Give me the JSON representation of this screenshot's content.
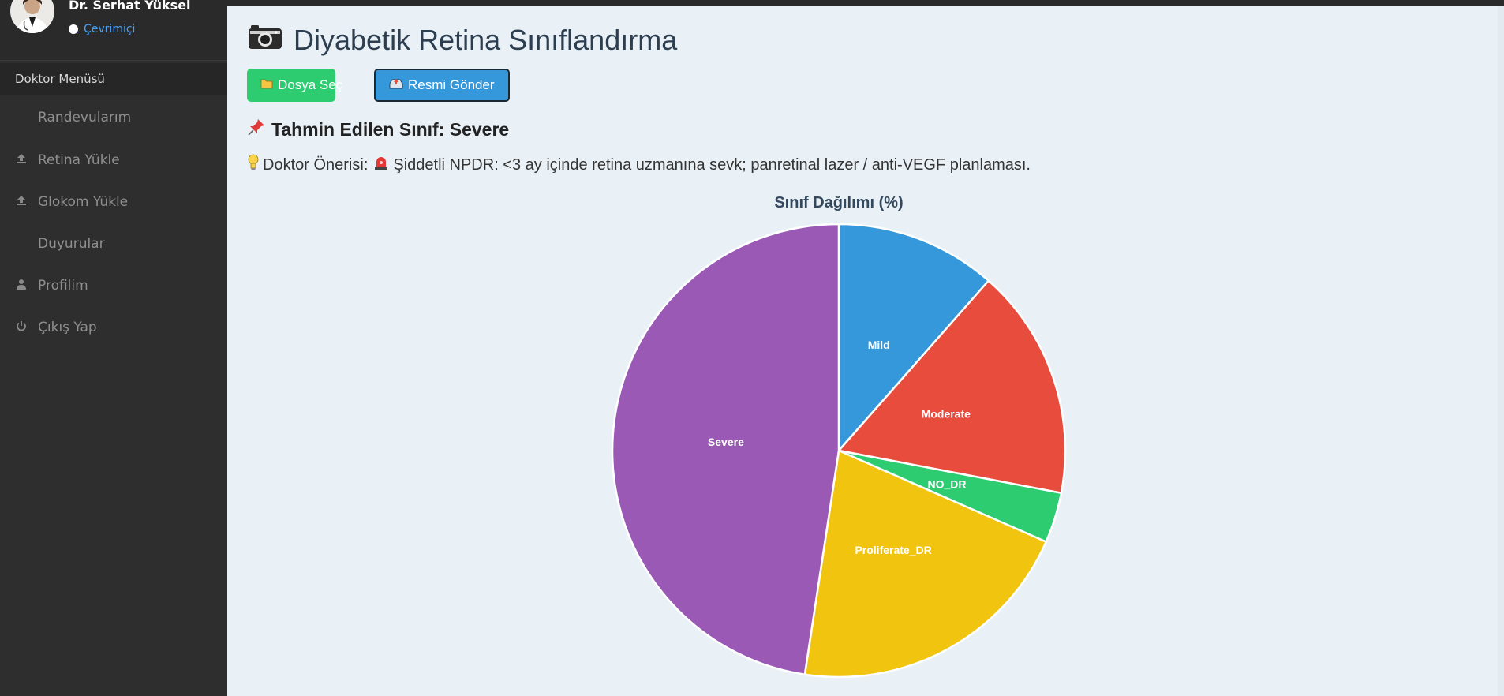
{
  "sidebar": {
    "user_name": "Dr. Serhat Yüksel",
    "status": "Çevrimiçi",
    "menu_title": "Doktor Menüsü",
    "items": [
      {
        "label": "Randevularım",
        "icon": ""
      },
      {
        "label": "Retina Yükle",
        "icon": "upload-icon"
      },
      {
        "label": "Glokom Yükle",
        "icon": "upload-icon"
      },
      {
        "label": "Duyurular",
        "icon": ""
      },
      {
        "label": "Profilim",
        "icon": "user-icon"
      },
      {
        "label": "Çıkış Yap",
        "icon": "power-icon"
      }
    ]
  },
  "main": {
    "title": "Diyabetik Retina Sınıflandırma",
    "choose_file": "Dosya Seç",
    "send_image": "Resmi Gönder",
    "prediction": "Tahmin Edilen Sınıf: Severe",
    "advice_prefix": "Doktor Önerisi:",
    "advice_text": "Şiddetli NPDR: <3 ay içinde retina uzmanına sevk; panretinal lazer / anti-VEGF planlaması."
  },
  "chart_data": {
    "type": "pie",
    "title": "Sınıf Dağılımı (%)",
    "labels": [
      "Mild",
      "Moderate",
      "NO_DR",
      "Proliferate_DR",
      "Severe"
    ],
    "values": [
      11.5,
      16.5,
      3.6,
      20.8,
      47.6
    ],
    "colors": [
      "#3498db",
      "#e74c3c",
      "#2ecc71",
      "#f1c40f",
      "#9b59b6"
    ]
  }
}
